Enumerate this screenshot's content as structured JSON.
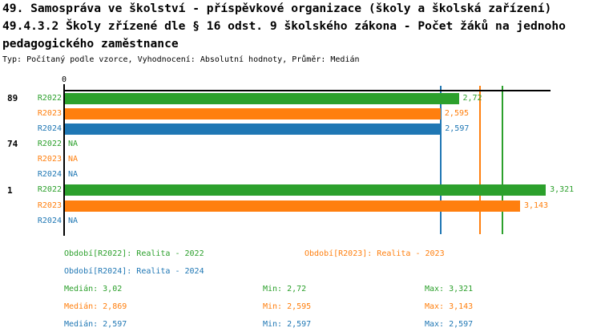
{
  "title": {
    "line1": "49. Samospráva ve školství - příspěvkové organizace (školy a školská zařízení)",
    "line2": "49.4.3.2 Školy zřízené dle § 16 odst. 9 školského zákona - Počet žáků na jednoho",
    "line3": "pedagogického zaměstnance",
    "subtitle": "Typ: Počítaný podle vzorce, Vyhodnocení: Absolutní hodnoty, Průměr: Medián"
  },
  "colors": {
    "green": "#2ca02c",
    "orange": "#ff7f0e",
    "blue": "#1f77b4",
    "axis": "#000000"
  },
  "chart_data": {
    "type": "bar",
    "orientation": "horizontal",
    "x_axis": {
      "min": 0,
      "ticks": [
        "0"
      ]
    },
    "na_text": "NA",
    "series": [
      "R2022",
      "R2023",
      "R2024"
    ],
    "series_colors": {
      "R2022": "#2ca02c",
      "R2023": "#ff7f0e",
      "R2024": "#1f77b4"
    },
    "groups": [
      {
        "label": "89",
        "rows": [
          {
            "series": "R2022",
            "value": 2.72,
            "display": "2,72"
          },
          {
            "series": "R2023",
            "value": 2.595,
            "display": "2,595"
          },
          {
            "series": "R2024",
            "value": 2.597,
            "display": "2,597"
          }
        ]
      },
      {
        "label": "74",
        "rows": [
          {
            "series": "R2022",
            "value": null,
            "display": "NA"
          },
          {
            "series": "R2023",
            "value": null,
            "display": "NA"
          },
          {
            "series": "R2024",
            "value": null,
            "display": "NA"
          }
        ]
      },
      {
        "label": "1",
        "rows": [
          {
            "series": "R2022",
            "value": 3.321,
            "display": "3,321"
          },
          {
            "series": "R2023",
            "value": 3.143,
            "display": "3,143"
          },
          {
            "series": "R2024",
            "value": null,
            "display": "NA"
          }
        ]
      }
    ],
    "median_lines": [
      {
        "series": "R2022",
        "value": 3.02
      },
      {
        "series": "R2023",
        "value": 2.869
      },
      {
        "series": "R2024",
        "value": 2.597
      }
    ],
    "stats": {
      "R2022": {
        "median": 3.02,
        "min": 2.72,
        "max": 3.321
      },
      "R2023": {
        "median": 2.869,
        "min": 2.595,
        "max": 3.143
      },
      "R2024": {
        "median": 2.597,
        "min": 2.597,
        "max": 2.597
      }
    }
  },
  "legend": {
    "r2022": "Období[R2022]: Realita - 2022",
    "r2023": "Období[R2023]: Realita - 2023",
    "r2024": "Období[R2024]: Realita - 2024"
  },
  "stats_panel": {
    "r2022": {
      "median": "Medián: 3,02",
      "min": "Min: 2,72",
      "max": "Max: 3,321"
    },
    "r2023": {
      "median": "Medián: 2,869",
      "min": "Min: 2,595",
      "max": "Max: 3,143"
    },
    "r2024": {
      "median": "Medián: 2,597",
      "min": "Min: 2,597",
      "max": "Max: 2,597"
    }
  }
}
